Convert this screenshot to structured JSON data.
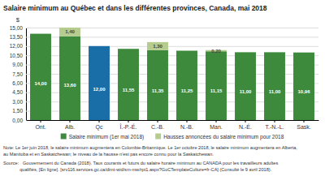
{
  "chart_data": {
    "type": "bar",
    "title": "Salaire minimum au Québec et dans les différentes provinces, Canada, mai 2018",
    "y_label": "$",
    "categories": [
      "Ont.",
      "Alb.",
      "Qc",
      "Î.-P.-É.",
      "C.-B.",
      "N.-B.",
      "Man.",
      "N.-É.",
      "T.-N.-L.",
      "Sask."
    ],
    "stacked": true,
    "data_labels": true,
    "grid": true,
    "legend": "bottom",
    "series": [
      {
        "name": "Salaire minimum (1er mai 2018)",
        "color": "#3d8a3d",
        "colors": [
          "#3d8a3d",
          "#3d8a3d",
          "#1a6ea8",
          "#3d8a3d",
          "#3d8a3d",
          "#3d8a3d",
          "#3d8a3d",
          "#3d8a3d",
          "#3d8a3d",
          "#3d8a3d"
        ],
        "values": [
          14.0,
          13.6,
          12.0,
          11.55,
          11.35,
          11.25,
          11.15,
          11.0,
          11.0,
          10.96
        ],
        "value_labels": [
          "14,00",
          "13,60",
          "12,00",
          "11,55",
          "11,35",
          "11,25",
          "11,15",
          "11,00",
          "11,00",
          "10,96"
        ]
      },
      {
        "name": "Hausses annoncées du salaire minimum pour 2018",
        "color": "#b5cc8e",
        "values": [
          0,
          1.4,
          0,
          0,
          1.3,
          0,
          0.2,
          0,
          0,
          0
        ],
        "value_labels": [
          null,
          "1,40",
          null,
          null,
          "1,30",
          null,
          "0,20",
          null,
          null,
          null
        ]
      }
    ],
    "ylim": [
      0,
      15.0
    ],
    "yticks": [
      {
        "value": 0.0,
        "label": "0,00"
      },
      {
        "value": 1.5,
        "label": "1,50"
      },
      {
        "value": 3.0,
        "label": "3,00"
      },
      {
        "value": 4.5,
        "label": "4,50"
      },
      {
        "value": 6.0,
        "label": "6,00"
      },
      {
        "value": 7.5,
        "label": "7,50"
      },
      {
        "value": 9.0,
        "label": "9,00"
      },
      {
        "value": 10.5,
        "label": "10,50"
      },
      {
        "value": 12.0,
        "label": "12,00"
      },
      {
        "value": 13.5,
        "label": "13,50"
      },
      {
        "value": 15.0,
        "label": "15,00"
      }
    ],
    "annotations": [
      "Note: Le 1er juin 2018, le salaire minimum augmentera en Colombie-Britannique. Le 1er octobre 2018, le salaire minimum augmentera en Alberta,",
      "au Manitoba et en Saskatchewan; le niveau de la hausse n'est pas encore connu pour la Saskatchewan.",
      "Source:   Gouvernement du Canada (2018). Taux courants et futurs du salaire horaire minimum au CANADA pour les travailleurs adultes",
      "             qualifiés, [En ligne]. [srv116.services.gc.ca/dimt-wid/sm-mw/rpt1.aspx?GoCTemplateCulture=fr-CA] (Consulté le 9 avril 2018)."
    ]
  }
}
